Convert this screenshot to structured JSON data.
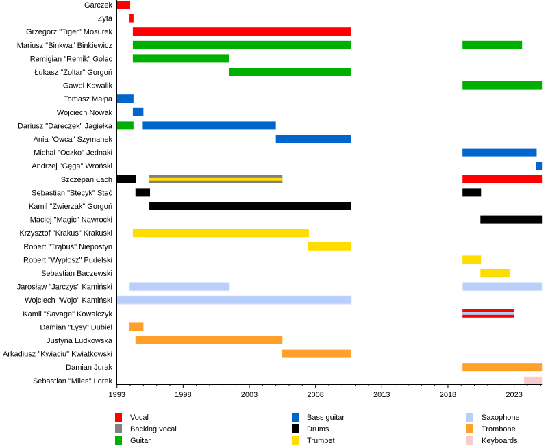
{
  "chart_data": {
    "type": "timeline",
    "xlim": [
      1993,
      2025.1
    ],
    "x_ticks": [
      1993,
      1998,
      2003,
      2008,
      2013,
      2018,
      2023
    ],
    "roles": [
      {
        "name": "Vocal",
        "color": "#ff0000"
      },
      {
        "name": "Backing vocal",
        "color": "#808080"
      },
      {
        "name": "Guitar",
        "color": "#00b000"
      },
      {
        "name": "Bass guitar",
        "color": "#0066cc"
      },
      {
        "name": "Drums",
        "color": "#000000"
      },
      {
        "name": "Trumpet",
        "color": "#ffdd00"
      },
      {
        "name": "Saxophone",
        "color": "#b9cffb"
      },
      {
        "name": "Trombone",
        "color": "#ffa02a"
      },
      {
        "name": "Keyboards",
        "color": "#f7cccc"
      }
    ],
    "members": [
      {
        "name": "Garczek",
        "bars": [
          {
            "role": "Vocal",
            "start": 1993,
            "end": 1994.0
          }
        ]
      },
      {
        "name": "Zyta",
        "bars": [
          {
            "role": "Vocal",
            "start": 1993.95,
            "end": 1994.25
          }
        ]
      },
      {
        "name": "Grzegorz \"Tiger\" Mosurek",
        "bars": [
          {
            "role": "Vocal",
            "start": 1994.2,
            "end": 2010.7
          }
        ]
      },
      {
        "name": "Mariusz \"Binkwa\" Binkiewicz",
        "bars": [
          {
            "role": "Guitar",
            "start": 1994.2,
            "end": 2010.7
          },
          {
            "role": "Guitar",
            "start": 2019.1,
            "end": 2023.6
          }
        ]
      },
      {
        "name": "Remigian \"Remik\" Golec",
        "bars": [
          {
            "role": "Guitar",
            "start": 1994.2,
            "end": 2001.5
          }
        ]
      },
      {
        "name": "Łukasz \"Zoltar\" Gorgoń",
        "bars": [
          {
            "role": "Guitar",
            "start": 2001.45,
            "end": 2010.7
          }
        ]
      },
      {
        "name": "Gaweł Kowalik",
        "bars": [
          {
            "role": "Guitar",
            "start": 2019.1,
            "end": 2025.1
          }
        ]
      },
      {
        "name": "Tomasz Małpa",
        "bars": [
          {
            "role": "Bass guitar",
            "start": 1993,
            "end": 1994.25
          }
        ]
      },
      {
        "name": "Wojciech Nowak",
        "bars": [
          {
            "role": "Bass guitar",
            "start": 1994.2,
            "end": 1995.0
          }
        ]
      },
      {
        "name": "Dariusz \"Dareczek\" Jagiełka",
        "bars": [
          {
            "role": "Guitar",
            "start": 1993,
            "end": 1994.25
          },
          {
            "role": "Bass guitar",
            "start": 1994.95,
            "end": 2005.0
          }
        ]
      },
      {
        "name": "Ania \"Owca\" Szymanek",
        "bars": [
          {
            "role": "Bass guitar",
            "start": 2005.0,
            "end": 2010.7
          }
        ]
      },
      {
        "name": "Michał \"Oczko\" Jednaki",
        "bars": [
          {
            "role": "Bass guitar",
            "start": 2019.1,
            "end": 2024.7
          }
        ]
      },
      {
        "name": "Andrzej \"Gęga\" Wroński",
        "bars": [
          {
            "role": "Bass guitar",
            "start": 2024.65,
            "end": 2025.1
          }
        ]
      },
      {
        "name": "Szczepan Łach",
        "bars": [
          {
            "role": "Drums",
            "start": 1993,
            "end": 1994.45
          },
          {
            "role": "Backing vocal",
            "secondary": "Trumpet",
            "start": 1995.45,
            "end": 2005.5
          },
          {
            "role": "Vocal",
            "start": 2019.1,
            "end": 2025.1
          }
        ]
      },
      {
        "name": "Sebastian \"Stecyk\" Steć",
        "bars": [
          {
            "role": "Drums",
            "start": 1994.4,
            "end": 1995.5
          },
          {
            "role": "Drums",
            "start": 2019.1,
            "end": 2020.5
          }
        ]
      },
      {
        "name": "Kamil \"Zwierzak\" Gorgoń",
        "bars": [
          {
            "role": "Drums",
            "start": 1995.45,
            "end": 2010.7
          }
        ]
      },
      {
        "name": "Maciej \"Magic\" Nawrocki",
        "bars": [
          {
            "role": "Drums",
            "start": 2020.45,
            "end": 2025.1
          }
        ]
      },
      {
        "name": "Krzysztof \"Krakus\" Krakuski",
        "bars": [
          {
            "role": "Trumpet",
            "start": 1994.2,
            "end": 2007.5
          }
        ]
      },
      {
        "name": "Robert \"Trąbuś\" Niepostyn",
        "bars": [
          {
            "role": "Trumpet",
            "start": 2007.45,
            "end": 2010.7
          }
        ]
      },
      {
        "name": "Robert \"Wypłosz\" Pudelski",
        "bars": [
          {
            "role": "Trumpet",
            "start": 2019.1,
            "end": 2020.5
          }
        ]
      },
      {
        "name": "Sebastian Baczewski",
        "bars": [
          {
            "role": "Trumpet",
            "start": 2020.45,
            "end": 2022.7
          }
        ]
      },
      {
        "name": "Jarosław \"Jarczys\" Kamiński",
        "bars": [
          {
            "role": "Saxophone",
            "start": 1993.95,
            "end": 2001.5
          },
          {
            "role": "Saxophone",
            "start": 2019.1,
            "end": 2025.1
          }
        ]
      },
      {
        "name": "Wojciech \"Wojo\" Kamiński",
        "bars": [
          {
            "role": "Saxophone",
            "start": 1993,
            "end": 2010.7
          }
        ]
      },
      {
        "name": "Kamil \"Savage\" Kowalczyk",
        "bars": [
          {
            "role": "Vocal",
            "secondary": "Saxophone",
            "start": 2019.1,
            "end": 2023.0
          }
        ]
      },
      {
        "name": "Damian \"Łysy\" Dubiel",
        "bars": [
          {
            "role": "Trombone",
            "start": 1993.95,
            "end": 1995.0
          }
        ]
      },
      {
        "name": "Justyna Ludkowska",
        "bars": [
          {
            "role": "Trombone",
            "start": 1994.4,
            "end": 2005.5
          }
        ]
      },
      {
        "name": "Arkadiusz \"Kwiaciu\" Kwiatkowski",
        "bars": [
          {
            "role": "Trombone",
            "start": 2005.45,
            "end": 2010.7
          }
        ]
      },
      {
        "name": "Damian Jurak",
        "bars": [
          {
            "role": "Trombone",
            "start": 2019.1,
            "end": 2025.1
          }
        ]
      },
      {
        "name": "Sebastian \"Miles\" Lorek",
        "bars": [
          {
            "role": "Keyboards",
            "start": 2023.75,
            "end": 2025.1
          }
        ]
      }
    ],
    "legend_placement": "bottom",
    "grid": false
  }
}
